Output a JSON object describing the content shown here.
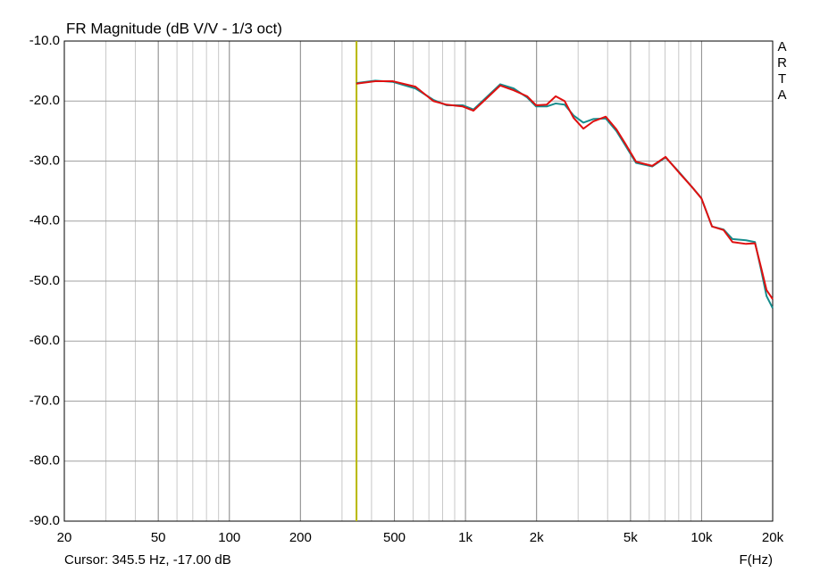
{
  "chart_data": {
    "type": "line",
    "title": "FR Magnitude (dB V/V - 1/3 oct)",
    "watermark": "ARTA",
    "x_label": "F(Hz)",
    "cursor": {
      "x": 345.5,
      "label": "Cursor: 345.5 Hz, -17.00 dB",
      "color": "#b8b800"
    },
    "x_scale": "log",
    "grid": true,
    "xlim": [
      20,
      20000
    ],
    "ylim": [
      -90,
      -10
    ],
    "xticks": [
      20,
      50,
      100,
      200,
      500,
      {
        "value": 1000,
        "label": "1k"
      },
      {
        "value": 2000,
        "label": "2k"
      },
      {
        "value": 5000,
        "label": "5k"
      },
      {
        "value": 10000,
        "label": "10k"
      },
      {
        "value": 20000,
        "label": "20k"
      }
    ],
    "yticks": [
      {
        "value": -90,
        "label": "-90.0"
      },
      {
        "value": -80,
        "label": "-80.0"
      },
      {
        "value": -70,
        "label": "-70.0"
      },
      {
        "value": -60,
        "label": "-60.0"
      },
      {
        "value": -50,
        "label": "-50.0"
      },
      {
        "value": -40,
        "label": "-40.0"
      },
      {
        "value": -30,
        "label": "-30.0"
      },
      {
        "value": -20,
        "label": "-20.0"
      },
      {
        "value": -10,
        "label": "-10.0"
      }
    ],
    "x": [
      345,
      415,
      493,
      614,
      731,
      832,
      973,
      1081,
      1233,
      1403,
      1600,
      1824,
      1991,
      2209,
      2410,
      2629,
      2869,
      3157,
      3475,
      3928,
      4357,
      4754,
      5275,
      6180,
      7035,
      8015,
      9140,
      9980,
      11070,
      12390,
      13520,
      15420,
      16830,
      17880,
      18840,
      20000
    ],
    "series": [
      {
        "color": "#168c8c",
        "values": [
          -17.0,
          -16.6,
          -16.8,
          -17.9,
          -19.8,
          -20.7,
          -20.7,
          -21.4,
          -19.3,
          -17.2,
          -17.9,
          -19.4,
          -20.9,
          -20.9,
          -20.4,
          -20.6,
          -22.4,
          -23.6,
          -23.0,
          -22.9,
          -25.0,
          -27.4,
          -30.3,
          -30.9,
          -29.4,
          -31.8,
          -34.4,
          -36.2,
          -40.9,
          -41.4,
          -43.0,
          -43.2,
          -43.5,
          -48.2,
          -52.5,
          -54.5
        ]
      },
      {
        "color": "#e01010",
        "values": [
          -17.1,
          -16.7,
          -16.7,
          -17.6,
          -20.0,
          -20.6,
          -20.9,
          -21.6,
          -19.5,
          -17.4,
          -18.2,
          -19.2,
          -20.7,
          -20.6,
          -19.2,
          -20.0,
          -22.8,
          -24.6,
          -23.4,
          -22.6,
          -24.7,
          -27.1,
          -30.1,
          -30.8,
          -29.3,
          -31.9,
          -34.4,
          -36.2,
          -40.9,
          -41.5,
          -43.5,
          -43.8,
          -43.7,
          -47.8,
          -51.5,
          -53.0
        ]
      }
    ]
  }
}
